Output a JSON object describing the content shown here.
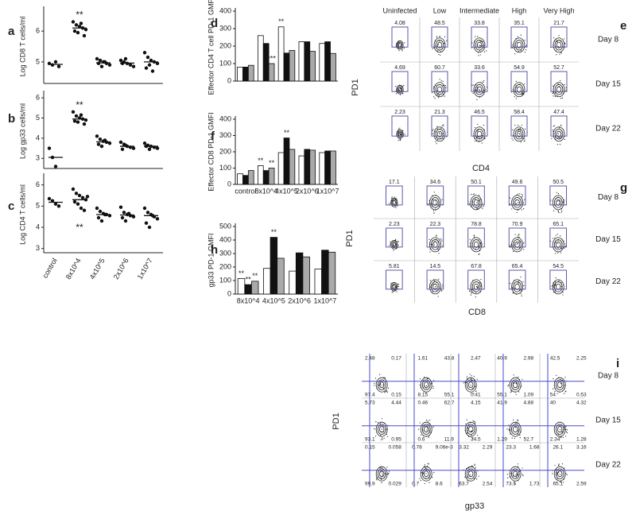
{
  "chart_data": [
    {
      "type": "strip",
      "panel_label": "a",
      "ylabel": "Log CD8 T cells/ml",
      "values": [
        [
          4.95,
          4.9,
          5.0,
          4.85
        ],
        [
          6.3,
          6.2,
          6.15,
          6.1,
          6.05,
          6.0,
          5.95,
          6.25,
          5.85
        ],
        [
          5.1,
          5.05,
          5.0,
          4.95,
          4.9,
          4.95,
          4.85,
          5.0
        ],
        [
          5.05,
          5.0,
          4.95,
          4.9,
          4.85,
          4.95,
          5.1
        ],
        [
          5.3,
          5.15,
          5.05,
          5.0,
          4.95,
          4.8,
          4.9,
          4.7
        ]
      ],
      "means": [
        4.92,
        6.1,
        4.97,
        4.96,
        5.0
      ],
      "ylim": [
        4.3,
        6.7
      ],
      "yticks": [
        5,
        6
      ],
      "annotations": [
        {
          "text": "**",
          "category_index": 1,
          "position": "above"
        }
      ]
    },
    {
      "type": "strip",
      "panel_label": "b",
      "ylabel": "Log gp33 cells/ml",
      "values": [
        [
          3.5,
          3.05,
          2.6
        ],
        [
          5.3,
          5.1,
          5.0,
          4.95,
          4.9,
          4.85,
          4.8,
          5.15,
          4.7
        ],
        [
          4.1,
          3.95,
          3.85,
          3.8,
          3.75,
          3.7,
          3.6,
          3.9
        ],
        [
          3.8,
          3.7,
          3.6,
          3.55,
          3.5,
          3.45,
          3.65
        ],
        [
          3.75,
          3.65,
          3.6,
          3.55,
          3.5,
          3.6,
          3.45
        ]
      ],
      "means": [
        3.05,
        4.95,
        3.82,
        3.6,
        3.6
      ],
      "ylim": [
        2.5,
        6.2
      ],
      "yticks": [
        3,
        4,
        5,
        6
      ],
      "annotations": [
        {
          "text": "**",
          "category_index": 1,
          "position": "above"
        }
      ]
    },
    {
      "type": "strip",
      "panel_label": "c",
      "ylabel": "Log CD4 T cells/ml",
      "categories": [
        "control",
        "8x10^4",
        "4x10^5",
        "2x10^6",
        "1x10^7"
      ],
      "values": [
        [
          5.35,
          5.25,
          5.1,
          5.0
        ],
        [
          5.8,
          5.6,
          5.5,
          5.4,
          5.3,
          5.2,
          5.1,
          4.9,
          4.8,
          5.45
        ],
        [
          4.9,
          4.75,
          4.65,
          4.6,
          4.55,
          4.45,
          4.3,
          4.6
        ],
        [
          4.95,
          4.7,
          4.6,
          4.55,
          4.5,
          4.45,
          4.3,
          4.65
        ],
        [
          4.9,
          4.7,
          4.6,
          4.5,
          4.4,
          4.2,
          4.0,
          4.55
        ]
      ],
      "means": [
        5.18,
        5.3,
        4.6,
        4.58,
        4.55
      ],
      "ylim": [
        2.8,
        6.4
      ],
      "yticks": [
        3,
        4,
        5,
        6
      ],
      "annotations": [
        {
          "text": "**",
          "category_index": 1,
          "position": "below"
        }
      ]
    },
    {
      "type": "bar",
      "panel_label": "d",
      "ylabel": "Effector CD4 T cell PD-1 GMFI",
      "series": [
        {
          "color": "#ffffff",
          "values": [
            80,
            260,
            310,
            225,
            215
          ]
        },
        {
          "color": "#111111",
          "values": [
            80,
            215,
            160,
            225,
            225
          ]
        },
        {
          "color": "#aaaaaa",
          "values": [
            90,
            100,
            175,
            170,
            158
          ]
        }
      ],
      "ylim": [
        0,
        400
      ],
      "yticks": [
        0,
        100,
        200,
        300,
        400
      ],
      "annotations": [
        {
          "text": "**",
          "category_index": 2,
          "series_index": 0
        },
        {
          "text": "***",
          "category_index": 1,
          "series_index": 2
        }
      ]
    },
    {
      "type": "bar",
      "panel_label": "f",
      "ylabel": "Effector CD8 PD-1 GMFI",
      "categories": [
        "control",
        "8x10^4",
        "4x10^5",
        "2x10^6",
        "1x10^7"
      ],
      "series": [
        {
          "color": "#ffffff",
          "values": [
            65,
            115,
            195,
            175,
            195
          ]
        },
        {
          "color": "#111111",
          "values": [
            55,
            85,
            285,
            215,
            205
          ]
        },
        {
          "color": "#aaaaaa",
          "values": [
            85,
            100,
            215,
            210,
            205
          ]
        }
      ],
      "ylim": [
        0,
        400
      ],
      "yticks": [
        0,
        100,
        200,
        300,
        400
      ],
      "annotations": [
        {
          "text": "**",
          "category_index": 1,
          "series_index": 0
        },
        {
          "text": "**",
          "category_index": 1,
          "series_index": 2
        },
        {
          "text": "**",
          "category_index": 2,
          "series_index": 1
        }
      ]
    },
    {
      "type": "bar",
      "panel_label": "h",
      "ylabel": "gp33 PD-1 GMFI",
      "categories": [
        "8x10^4",
        "4x10^5",
        "2x10^6",
        "1x10^7"
      ],
      "series": [
        {
          "color": "#ffffff",
          "values": [
            115,
            190,
            170,
            185
          ]
        },
        {
          "color": "#111111",
          "values": [
            70,
            420,
            305,
            325
          ]
        },
        {
          "color": "#aaaaaa",
          "values": [
            95,
            265,
            275,
            310
          ]
        }
      ],
      "ylim": [
        0,
        500
      ],
      "yticks": [
        0,
        100,
        200,
        300,
        400,
        500
      ],
      "annotations": [
        {
          "text": "**",
          "category_index": 0,
          "series_index": 0
        },
        {
          "text": "**",
          "category_index": 0,
          "series_index": 1
        },
        {
          "text": "**",
          "category_index": 0,
          "series_index": 2
        },
        {
          "text": "**",
          "category_index": 1,
          "series_index": 1
        }
      ]
    }
  ],
  "flow_panels": [
    {
      "panel_label": "e",
      "columns": [
        "Uninfected",
        "Low",
        "Intermediate",
        "High",
        "Very High"
      ],
      "y_label": "PD1",
      "x_label": "CD4",
      "rows": [
        {
          "label": "Day 8",
          "gates": [
            4.08,
            48.5,
            33.8,
            35.1,
            21.7
          ]
        },
        {
          "label": "Day 15",
          "gates": [
            4.69,
            60.7,
            33.6,
            54.9,
            52.7
          ]
        },
        {
          "label": "Day 22",
          "gates": [
            2.23,
            21.3,
            46.5,
            58.4,
            47.4
          ]
        }
      ]
    },
    {
      "panel_label": "g",
      "y_label": "PD1",
      "x_label": "CD8",
      "rows": [
        {
          "label": "Day 8",
          "gates": [
            17.1,
            34.6,
            50.1,
            49.6,
            50.5
          ]
        },
        {
          "label": "Day 15",
          "gates": [
            2.23,
            22.3,
            78.8,
            70.9,
            65.1
          ]
        },
        {
          "label": "Day 22",
          "gates": [
            5.81,
            14.5,
            67.8,
            65.4,
            54.5
          ]
        }
      ]
    },
    {
      "panel_label": "i",
      "y_label": "PD1",
      "x_label": "gp33",
      "rows": [
        {
          "label": "Day 8",
          "top": [
            2.48,
            0.17,
            1.61,
            43.8,
            2.47,
            40.9,
            2.98,
            42.5,
            2.25
          ],
          "bottom": [
            97.4,
            0.15,
            8.15,
            55.1,
            0.41,
            55.1,
            1.09,
            54,
            0.53
          ]
        },
        {
          "label": "Day 15",
          "top": [
            5.73,
            4.44,
            0.46,
            62.7,
            4.15,
            41.9,
            4.88,
            40,
            4.32
          ],
          "bottom": [
            93.1,
            0.95,
            0.6,
            11.9,
            34.5,
            1.29,
            52.7,
            2.34,
            1.28
          ]
        },
        {
          "label": "Day 22",
          "top": [
            0.15,
            0.058,
            0.78,
            "9.06e-3",
            3.32,
            2.29,
            23.3,
            1.68,
            26.1,
            3.16
          ],
          "bottom": [
            99.9,
            0.029,
            0.7,
            8.6,
            63.7,
            2.54,
            73.5,
            1.73,
            65.1,
            2.59
          ]
        }
      ]
    }
  ]
}
